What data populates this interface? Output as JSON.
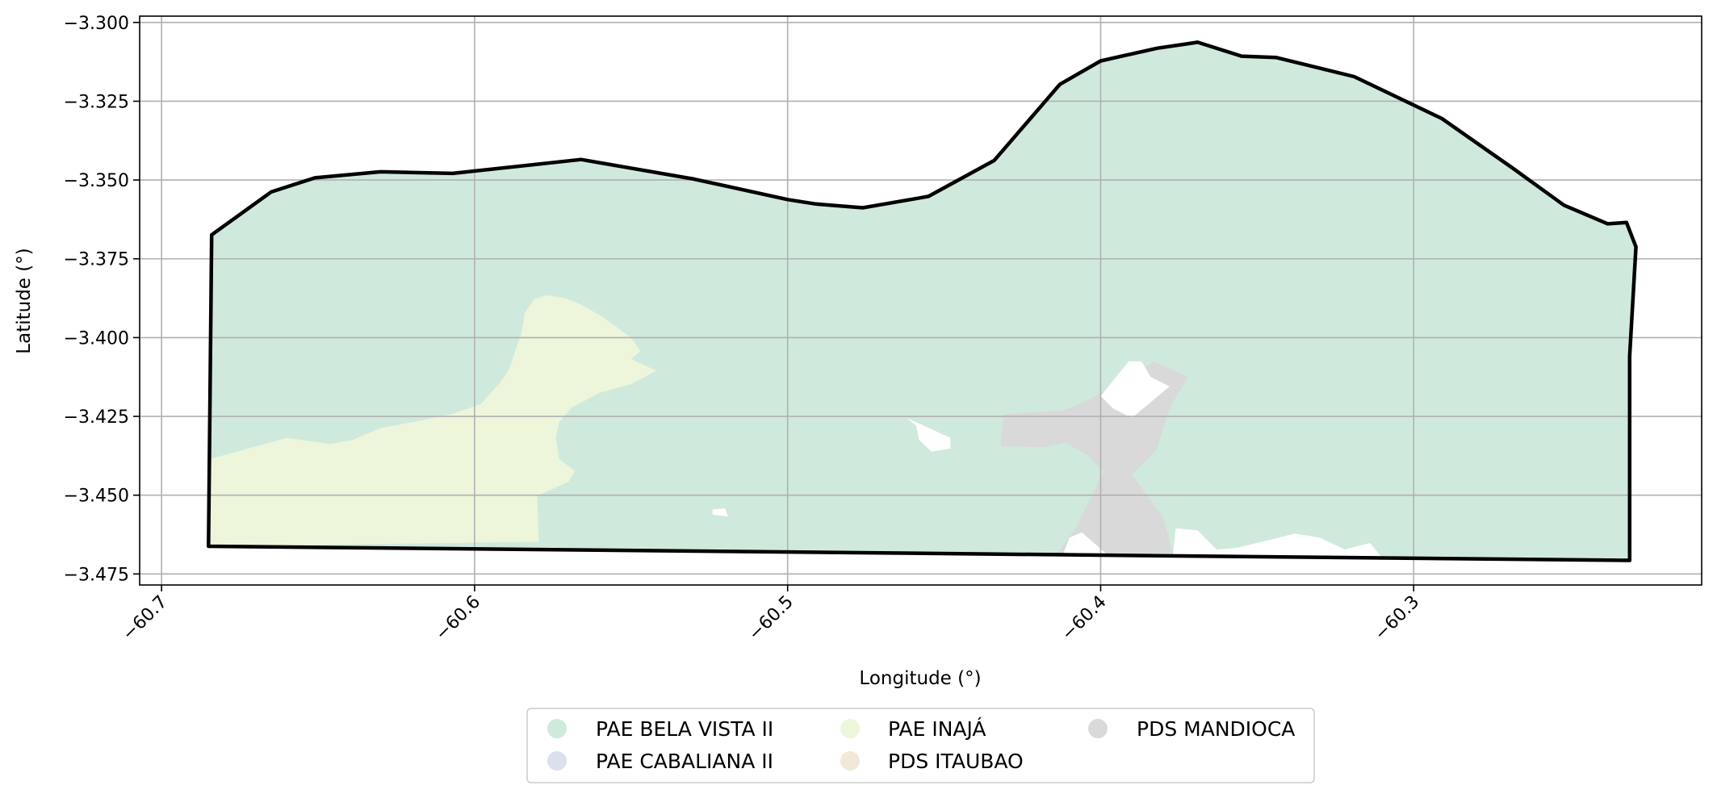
{
  "axes": {
    "xlabel": "Longitude (°)",
    "ylabel": "Latitude (°)",
    "xlim": [
      -60.707,
      -60.208
    ],
    "ylim": [
      -3.4785,
      -3.298
    ],
    "xticks": [
      -60.7,
      -60.6,
      -60.5,
      -60.4,
      -60.3
    ],
    "xtick_labels": [
      "−60.7",
      "−60.6",
      "−60.5",
      "−60.4",
      "−60.3"
    ],
    "yticks": [
      -3.3,
      -3.325,
      -3.35,
      -3.375,
      -3.4,
      -3.425,
      -3.45,
      -3.475
    ],
    "ytick_labels": [
      "−3.300",
      "−3.325",
      "−3.350",
      "−3.375",
      "−3.400",
      "−3.425",
      "−3.450",
      "−3.475"
    ],
    "grid": true
  },
  "legend": {
    "placement": "bottom-center",
    "columns": 3,
    "items": [
      {
        "label": "PAE BELA VISTA II",
        "color": "#cfeadc"
      },
      {
        "label": "PAE CABALIANA II",
        "color": "#dbe0ee"
      },
      {
        "label": "PAE INAJÁ",
        "color": "#edf6da"
      },
      {
        "label": "PDS ITAUBAO",
        "color": "#f2e8d8"
      },
      {
        "label": "PDS MANDIOCA",
        "color": "#d9d9d9"
      }
    ]
  },
  "map": {
    "boundary_color": "#000000",
    "boundary": [
      [
        -60.684,
        -3.3674
      ],
      [
        -60.665,
        -3.3538
      ],
      [
        -60.651,
        -3.3493
      ],
      [
        -60.63,
        -3.3474
      ],
      [
        -60.607,
        -3.3479
      ],
      [
        -60.566,
        -3.3435
      ],
      [
        -60.53,
        -3.3497
      ],
      [
        -60.5,
        -3.3562
      ],
      [
        -60.491,
        -3.3576
      ],
      [
        -60.476,
        -3.3588
      ],
      [
        -60.455,
        -3.3552
      ],
      [
        -60.434,
        -3.3438
      ],
      [
        -60.413,
        -3.3196
      ],
      [
        -60.4,
        -3.3122
      ],
      [
        -60.382,
        -3.3082
      ],
      [
        -60.369,
        -3.3063
      ],
      [
        -60.355,
        -3.3107
      ],
      [
        -60.344,
        -3.3111
      ],
      [
        -60.319,
        -3.3172
      ],
      [
        -60.291,
        -3.3305
      ],
      [
        -60.268,
        -3.3465
      ],
      [
        -60.252,
        -3.358
      ],
      [
        -60.238,
        -3.3639
      ],
      [
        -60.232,
        -3.3635
      ],
      [
        -60.229,
        -3.3712
      ],
      [
        -60.231,
        -3.4059
      ],
      [
        -60.231,
        -3.4707
      ],
      [
        -60.685,
        -3.4662
      ],
      [
        -60.684,
        -3.3674
      ]
    ],
    "regions": [
      {
        "name": "PAE BELA VISTA II",
        "color": "#cfeadc",
        "polygon": [
          [
            -60.684,
            -3.3674
          ],
          [
            -60.665,
            -3.3538
          ],
          [
            -60.651,
            -3.3493
          ],
          [
            -60.63,
            -3.3474
          ],
          [
            -60.607,
            -3.3479
          ],
          [
            -60.566,
            -3.3435
          ],
          [
            -60.53,
            -3.3497
          ],
          [
            -60.5,
            -3.3562
          ],
          [
            -60.491,
            -3.3576
          ],
          [
            -60.476,
            -3.3588
          ],
          [
            -60.455,
            -3.3552
          ],
          [
            -60.434,
            -3.3438
          ],
          [
            -60.413,
            -3.3196
          ],
          [
            -60.4,
            -3.3122
          ],
          [
            -60.382,
            -3.3082
          ],
          [
            -60.369,
            -3.3063
          ],
          [
            -60.355,
            -3.3107
          ],
          [
            -60.344,
            -3.3111
          ],
          [
            -60.319,
            -3.3172
          ],
          [
            -60.291,
            -3.3305
          ],
          [
            -60.268,
            -3.3465
          ],
          [
            -60.252,
            -3.358
          ],
          [
            -60.238,
            -3.3639
          ],
          [
            -60.232,
            -3.3635
          ],
          [
            -60.229,
            -3.3712
          ],
          [
            -60.231,
            -3.4059
          ],
          [
            -60.231,
            -3.4707
          ],
          [
            -60.685,
            -3.4662
          ],
          [
            -60.684,
            -3.3674
          ]
        ]
      },
      {
        "name": "PAE INAJÁ",
        "color": "#edf6da",
        "polygon": [
          [
            -60.685,
            -3.4387
          ],
          [
            -60.66,
            -3.4318
          ],
          [
            -60.646,
            -3.4338
          ],
          [
            -60.639,
            -3.4325
          ],
          [
            -60.63,
            -3.4287
          ],
          [
            -60.618,
            -3.4265
          ],
          [
            -60.607,
            -3.4242
          ],
          [
            -60.598,
            -3.4211
          ],
          [
            -60.592,
            -3.4145
          ],
          [
            -60.589,
            -3.4102
          ],
          [
            -60.587,
            -3.4043
          ],
          [
            -60.585,
            -3.3985
          ],
          [
            -60.584,
            -3.3923
          ],
          [
            -60.581,
            -3.3878
          ],
          [
            -60.577,
            -3.3865
          ],
          [
            -60.571,
            -3.3875
          ],
          [
            -60.566,
            -3.3895
          ],
          [
            -60.559,
            -3.3935
          ],
          [
            -60.55,
            -3.4
          ],
          [
            -60.547,
            -3.4043
          ],
          [
            -60.55,
            -3.4068
          ],
          [
            -60.542,
            -3.4105
          ],
          [
            -60.55,
            -3.4148
          ],
          [
            -60.56,
            -3.4175
          ],
          [
            -60.569,
            -3.4222
          ],
          [
            -60.573,
            -3.4268
          ],
          [
            -60.574,
            -3.4318
          ],
          [
            -60.573,
            -3.4385
          ],
          [
            -60.568,
            -3.4423
          ],
          [
            -60.57,
            -3.4457
          ],
          [
            -60.58,
            -3.4502
          ],
          [
            -60.5795,
            -3.4648
          ],
          [
            -60.685,
            -3.4662
          ],
          [
            -60.685,
            -3.4387
          ]
        ]
      },
      {
        "name": "PDS MANDIOCA",
        "color": "#d9d9d9",
        "polygon": [
          [
            -60.431,
            -3.4243
          ],
          [
            -60.412,
            -3.4231
          ],
          [
            -60.404,
            -3.4198
          ],
          [
            -60.393,
            -3.4135
          ],
          [
            -60.387,
            -3.4103
          ],
          [
            -60.383,
            -3.4075
          ],
          [
            -60.372,
            -3.4125
          ],
          [
            -60.378,
            -3.4222
          ],
          [
            -60.382,
            -3.4355
          ],
          [
            -60.39,
            -3.4435
          ],
          [
            -60.38,
            -3.457
          ],
          [
            -60.377,
            -3.4682
          ],
          [
            -60.414,
            -3.4688
          ],
          [
            -60.408,
            -3.4605
          ],
          [
            -60.399,
            -3.4425
          ],
          [
            -60.404,
            -3.4375
          ],
          [
            -60.411,
            -3.4335
          ],
          [
            -60.418,
            -3.4348
          ],
          [
            -60.432,
            -3.4345
          ],
          [
            -60.431,
            -3.4243
          ]
        ]
      }
    ],
    "holes": [
      [
        [
          -60.4,
          -3.4185
        ],
        [
          -60.391,
          -3.4075
        ],
        [
          -60.387,
          -3.4075
        ],
        [
          -60.384,
          -3.4125
        ],
        [
          -60.378,
          -3.4155
        ],
        [
          -60.39,
          -3.4255
        ],
        [
          -60.396,
          -3.4225
        ],
        [
          -60.4,
          -3.4185
        ]
      ],
      [
        [
          -60.462,
          -3.4255
        ],
        [
          -60.459,
          -3.4278
        ],
        [
          -60.458,
          -3.4325
        ],
        [
          -60.454,
          -3.4362
        ],
        [
          -60.448,
          -3.4352
        ],
        [
          -60.448,
          -3.4318
        ],
        [
          -60.456,
          -3.4282
        ],
        [
          -60.462,
          -3.4255
        ]
      ],
      [
        [
          -60.524,
          -3.4545
        ],
        [
          -60.52,
          -3.4542
        ],
        [
          -60.519,
          -3.4568
        ],
        [
          -60.524,
          -3.4562
        ],
        [
          -60.524,
          -3.4545
        ]
      ],
      [
        [
          -60.412,
          -3.4688
        ],
        [
          -60.41,
          -3.4635
        ],
        [
          -60.406,
          -3.4618
        ],
        [
          -60.398,
          -3.4688
        ],
        [
          -60.412,
          -3.4688
        ]
      ],
      [
        [
          -60.377,
          -3.4695
        ],
        [
          -60.376,
          -3.4605
        ],
        [
          -60.369,
          -3.4612
        ],
        [
          -60.363,
          -3.4672
        ],
        [
          -60.357,
          -3.4668
        ],
        [
          -60.346,
          -3.4642
        ],
        [
          -60.338,
          -3.4622
        ],
        [
          -60.33,
          -3.4635
        ],
        [
          -60.322,
          -3.4672
        ],
        [
          -60.314,
          -3.4652
        ],
        [
          -60.31,
          -3.4699
        ],
        [
          -60.377,
          -3.4695
        ]
      ]
    ]
  }
}
